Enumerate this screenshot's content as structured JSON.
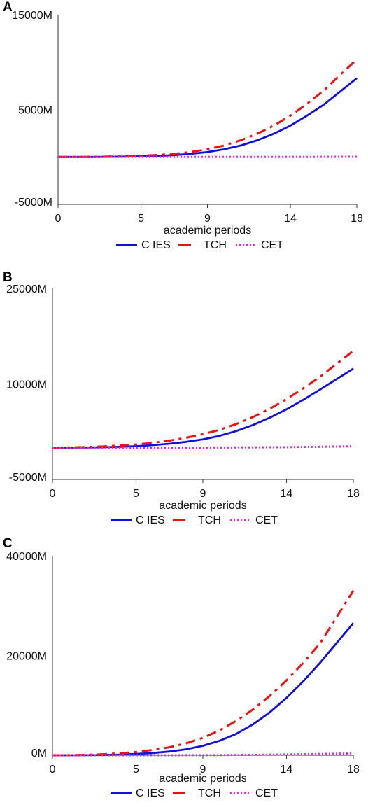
{
  "chart_data": [
    {
      "type": "line",
      "panel": "A",
      "xlabel": "academic periods",
      "ylabel": "",
      "xlim": [
        0,
        18
      ],
      "ylim": [
        -5000,
        15000
      ],
      "x_ticks": [
        0,
        5,
        9,
        14,
        18
      ],
      "y_ticks": [
        15000,
        5000,
        -5000
      ],
      "y_tick_labels": [
        "15000M",
        "5000M",
        "-5000M"
      ],
      "grid": false,
      "legend_position": "bottom",
      "x": [
        0,
        1,
        2,
        3,
        4,
        5,
        6,
        7,
        8,
        9,
        10,
        11,
        12,
        13,
        14,
        15,
        16,
        18
      ],
      "series": [
        {
          "name": "C IES",
          "color": "#1010dd",
          "dash": "solid",
          "values": [
            0,
            0,
            0,
            10,
            30,
            60,
            110,
            190,
            320,
            510,
            800,
            1200,
            1750,
            2450,
            3300,
            4350,
            5500,
            8300
          ]
        },
        {
          "name": "TCH",
          "color": "#ee1111",
          "dash": "dashdot",
          "values": [
            0,
            0,
            10,
            30,
            70,
            120,
            200,
            330,
            520,
            800,
            1200,
            1750,
            2450,
            3300,
            4350,
            5600,
            7000,
            10300
          ]
        },
        {
          "name": "CET",
          "color": "#ee22ee",
          "dash": "dotted",
          "values": [
            0,
            0,
            0,
            0,
            0,
            0,
            0,
            0,
            0,
            0,
            0,
            0,
            0,
            0,
            0,
            0,
            10,
            20
          ]
        }
      ]
    },
    {
      "type": "line",
      "panel": "B",
      "xlabel": "academic periods",
      "ylabel": "",
      "xlim": [
        0,
        18
      ],
      "ylim": [
        -5000,
        25000
      ],
      "x_ticks": [
        0,
        5,
        9,
        14,
        18
      ],
      "y_ticks": [
        25000,
        10000,
        -5000
      ],
      "y_tick_labels": [
        "25000M",
        "10000M",
        "-5000M"
      ],
      "grid": false,
      "legend_position": "bottom",
      "x": [
        0,
        1,
        2,
        3,
        4,
        5,
        6,
        7,
        8,
        9,
        10,
        11,
        12,
        13,
        14,
        15,
        16,
        18
      ],
      "series": [
        {
          "name": "C IES",
          "color": "#1010dd",
          "dash": "solid",
          "values": [
            0,
            0,
            20,
            60,
            120,
            220,
            380,
            600,
            900,
            1300,
            1850,
            2600,
            3550,
            4700,
            6000,
            7500,
            9100,
            12400
          ]
        },
        {
          "name": "TCH",
          "color": "#ee1111",
          "dash": "dashdot",
          "values": [
            0,
            20,
            80,
            180,
            320,
            500,
            750,
            1100,
            1550,
            2100,
            2800,
            3700,
            4800,
            6100,
            7600,
            9300,
            11100,
            15200
          ]
        },
        {
          "name": "CET",
          "color": "#ee22ee",
          "dash": "dotted",
          "values": [
            0,
            0,
            0,
            0,
            0,
            0,
            0,
            0,
            0,
            0,
            10,
            20,
            30,
            50,
            70,
            100,
            130,
            200
          ]
        }
      ]
    },
    {
      "type": "line",
      "panel": "C",
      "xlabel": "academic periods",
      "ylabel": "",
      "xlim": [
        0,
        18
      ],
      "ylim": [
        0,
        40000
      ],
      "x_ticks": [
        0,
        5,
        9,
        14,
        18
      ],
      "y_ticks": [
        40000,
        20000,
        0
      ],
      "y_tick_labels": [
        "40000M",
        "20000M",
        "0M"
      ],
      "grid": false,
      "legend_position": "bottom",
      "x": [
        0,
        1,
        2,
        3,
        4,
        5,
        6,
        7,
        8,
        9,
        10,
        11,
        12,
        13,
        14,
        15,
        16,
        18
      ],
      "series": [
        {
          "name": "C IES",
          "color": "#1010dd",
          "dash": "solid",
          "values": [
            0,
            0,
            20,
            60,
            130,
            250,
            450,
            750,
            1200,
            1900,
            2900,
            4300,
            6200,
            8600,
            11500,
            14800,
            18500,
            26500
          ]
        },
        {
          "name": "TCH",
          "color": "#ee1111",
          "dash": "dashdot",
          "values": [
            0,
            20,
            80,
            200,
            380,
            650,
            1050,
            1600,
            2400,
            3500,
            5000,
            6900,
            9200,
            11900,
            15000,
            18500,
            22400,
            33000
          ]
        },
        {
          "name": "CET",
          "color": "#ee22ee",
          "dash": "dotted",
          "values": [
            0,
            0,
            0,
            0,
            0,
            0,
            0,
            0,
            10,
            20,
            30,
            50,
            80,
            110,
            150,
            200,
            250,
            380
          ]
        }
      ]
    }
  ]
}
